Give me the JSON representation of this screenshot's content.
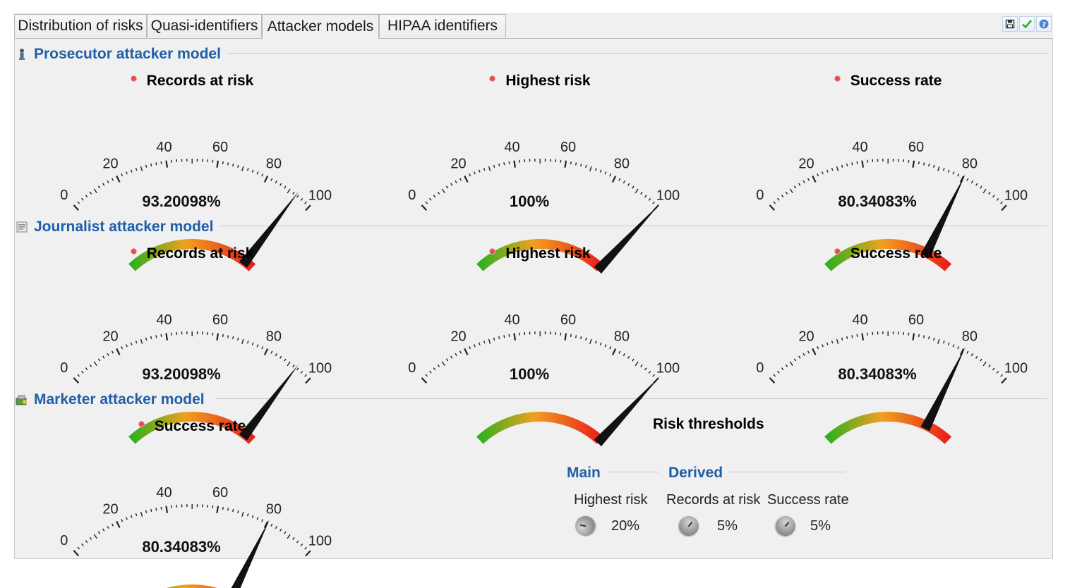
{
  "tabs": [
    {
      "label": "Distribution of risks"
    },
    {
      "label": "Quasi-identifiers"
    },
    {
      "label": "Attacker models"
    },
    {
      "label": "HIPAA identifiers"
    }
  ],
  "toolbar": {
    "icons": [
      "save-icon",
      "check-icon",
      "help-icon"
    ]
  },
  "sections": [
    {
      "title": "Prosecutor attacker model",
      "icon": "prosecutor-icon"
    },
    {
      "title": "Journalist attacker model",
      "icon": "journalist-icon"
    },
    {
      "title": "Marketer attacker model",
      "icon": "marketer-icon"
    }
  ],
  "gauge_ticks": [
    "0",
    "20",
    "40",
    "60",
    "80",
    "100"
  ],
  "gauges": {
    "prosecutor": [
      {
        "label": "Records at risk",
        "value": 93.20098,
        "display": "93.20098%"
      },
      {
        "label": "Highest risk",
        "value": 100,
        "display": "100%"
      },
      {
        "label": "Success rate",
        "value": 80.34083,
        "display": "80.34083%"
      }
    ],
    "journalist": [
      {
        "label": "Records at risk",
        "value": 93.20098,
        "display": "93.20098%"
      },
      {
        "label": "Highest risk",
        "value": 100,
        "display": "100%"
      },
      {
        "label": "Success rate",
        "value": 80.34083,
        "display": "80.34083%"
      }
    ],
    "marketer": [
      {
        "label": "Success rate",
        "value": 80.34083,
        "display": "80.34083%"
      }
    ]
  },
  "thresholds": {
    "title": "Risk thresholds",
    "main_label": "Main",
    "derived_label": "Derived",
    "items": [
      {
        "label": "Highest risk",
        "value": "20%"
      },
      {
        "label": "Records at risk",
        "value": "5%"
      },
      {
        "label": "Success rate",
        "value": "5%"
      }
    ]
  },
  "colors": {
    "accent": "#1f5fa8",
    "gauge_low": "#22b21e",
    "gauge_mid": "#f0a020",
    "gauge_high": "#e81a1a"
  }
}
